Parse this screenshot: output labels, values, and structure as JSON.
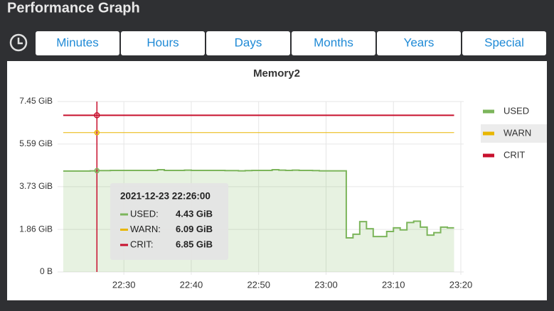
{
  "header": {
    "title": "Performance Graph"
  },
  "tabs": [
    "Minutes",
    "Hours",
    "Days",
    "Months",
    "Years",
    "Special"
  ],
  "chart_data": {
    "type": "line",
    "title": "Memory2",
    "x": [
      "22:21",
      "22:22",
      "22:23",
      "22:24",
      "22:25",
      "22:26",
      "22:27",
      "22:28",
      "22:29",
      "22:30",
      "22:31",
      "22:32",
      "22:33",
      "22:34",
      "22:35",
      "22:36",
      "22:37",
      "22:38",
      "22:39",
      "22:40",
      "22:41",
      "22:42",
      "22:43",
      "22:44",
      "22:45",
      "22:46",
      "22:47",
      "22:48",
      "22:49",
      "22:50",
      "22:51",
      "22:52",
      "22:53",
      "22:54",
      "22:55",
      "22:56",
      "22:57",
      "22:58",
      "22:59",
      "23:00",
      "23:01",
      "23:02",
      "23:03",
      "23:04",
      "23:05",
      "23:06",
      "23:07",
      "23:08",
      "23:09",
      "23:10",
      "23:11",
      "23:12",
      "23:13",
      "23:14",
      "23:15",
      "23:16",
      "23:17",
      "23:18",
      "23:19"
    ],
    "series": [
      {
        "name": "USED",
        "color": "#7cb55b",
        "values": [
          4.41,
          4.41,
          4.41,
          4.41,
          4.42,
          4.43,
          4.43,
          4.44,
          4.44,
          4.44,
          4.44,
          4.44,
          4.44,
          4.44,
          4.47,
          4.44,
          4.44,
          4.44,
          4.45,
          4.44,
          4.44,
          4.44,
          4.44,
          4.44,
          4.43,
          4.43,
          4.42,
          4.43,
          4.44,
          4.44,
          4.44,
          4.47,
          4.45,
          4.44,
          4.45,
          4.44,
          4.44,
          4.43,
          4.42,
          4.42,
          4.42,
          4.42,
          1.49,
          1.65,
          2.2,
          1.89,
          1.55,
          1.55,
          1.77,
          1.93,
          1.84,
          2.16,
          2.22,
          1.96,
          1.61,
          1.72,
          1.96,
          1.93,
          1.93
        ]
      },
      {
        "name": "WARN",
        "color": "#e8b600",
        "value": 6.09
      },
      {
        "name": "CRIT",
        "color": "#c8102e",
        "value": 6.85
      }
    ],
    "xlim": [
      "22:21",
      "23:20"
    ],
    "xticks": [
      "22:30",
      "22:40",
      "22:50",
      "23:00",
      "23:10",
      "23:20"
    ],
    "ylim": [
      0,
      7.45
    ],
    "yticks": [
      {
        "value": 0,
        "label": "0 B"
      },
      {
        "value": 1.86,
        "label": "1.86 GiB"
      },
      {
        "value": 3.73,
        "label": "3.73 GiB"
      },
      {
        "value": 5.59,
        "label": "5.59 GiB"
      },
      {
        "value": 7.45,
        "label": "7.45 GiB"
      }
    ],
    "grid": true,
    "tooltip": {
      "time": "2021-12-23 22:26:00",
      "rows": [
        {
          "label": "USED:",
          "value": 4.43,
          "value_label": "4.43 GiB"
        },
        {
          "label": "WARN:",
          "value": 6.09,
          "value_label": "6.09 GiB"
        },
        {
          "label": "CRIT:",
          "value": 6.85,
          "value_label": "6.85 GiB"
        }
      ]
    }
  }
}
